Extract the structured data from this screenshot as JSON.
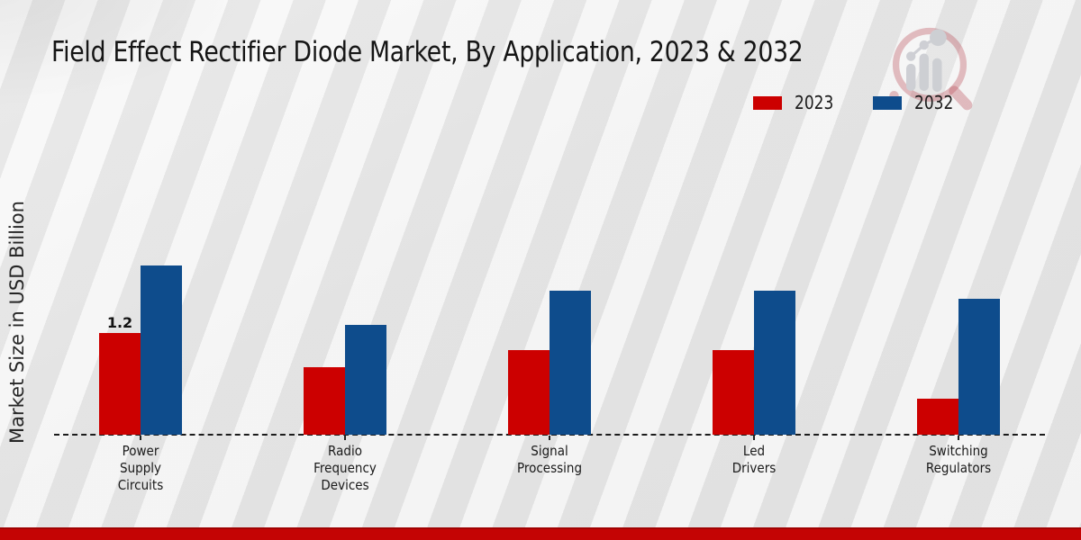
{
  "icons": {
    "watermark": "magnifier-bar-chart-logo"
  },
  "footer": {
    "accent_color": "#C40404"
  },
  "chart_data": {
    "type": "bar",
    "title": "Field Effect Rectifier Diode Market, By Application, 2023 & 2032",
    "xlabel": "",
    "ylabel": "Market Size in USD Billion",
    "categories": [
      "Power\nSupply\nCircuits",
      "Radio\nFrequency\nDevices",
      "Signal\nProcessing",
      "Led\nDrivers",
      "Switching\nRegulators"
    ],
    "series": [
      {
        "name": "2023",
        "color": "#CC0000",
        "values": [
          1.2,
          0.8,
          1.0,
          1.0,
          0.42
        ]
      },
      {
        "name": "2032",
        "color": "#0E4C8C",
        "values": [
          2.0,
          1.3,
          1.7,
          1.7,
          1.6
        ]
      }
    ],
    "bar_labels": [
      {
        "series": 0,
        "category": 0,
        "text": "1.2"
      }
    ],
    "ylim": [
      0,
      2.2
    ],
    "grid": false,
    "baseline_style": "dashed",
    "legend_position": "top-right"
  }
}
